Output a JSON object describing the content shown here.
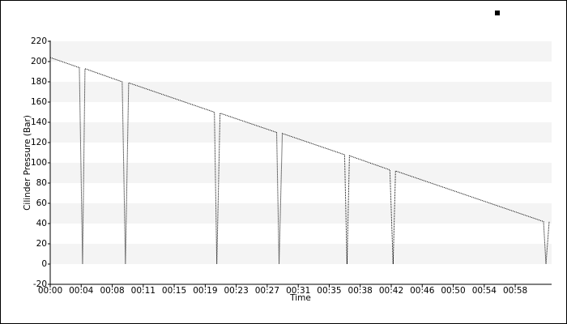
{
  "chart_data": {
    "type": "line",
    "ylabel": "Cilinder Pressure (Bar)",
    "xlabel": "Time",
    "xlim": [
      0,
      62
    ],
    "ylim": [
      -20,
      220
    ],
    "grid": "bands",
    "yticks": [
      -20,
      0,
      20,
      40,
      60,
      80,
      100,
      120,
      140,
      160,
      180,
      200,
      220
    ],
    "xticks": [
      {
        "value": 0,
        "label": "00:00"
      },
      {
        "value": 3.83,
        "label": "00:04"
      },
      {
        "value": 7.67,
        "label": "00:08"
      },
      {
        "value": 11.5,
        "label": "00:11"
      },
      {
        "value": 15.33,
        "label": "00:15"
      },
      {
        "value": 19.17,
        "label": "00:19"
      },
      {
        "value": 23,
        "label": "00:23"
      },
      {
        "value": 26.83,
        "label": "00:27"
      },
      {
        "value": 30.67,
        "label": "00:31"
      },
      {
        "value": 34.5,
        "label": "00:35"
      },
      {
        "value": 38.33,
        "label": "00:38"
      },
      {
        "value": 42.17,
        "label": "00:42"
      },
      {
        "value": 46,
        "label": "00:46"
      },
      {
        "value": 49.83,
        "label": "00:50"
      },
      {
        "value": 53.67,
        "label": "00:54"
      },
      {
        "value": 57.5,
        "label": "00:58"
      }
    ],
    "series": [
      {
        "color": "#000000",
        "x": [
          0,
          3.6,
          4.0,
          4.3,
          8.9,
          9.3,
          9.7,
          20.3,
          20.6,
          21.0,
          28.0,
          28.3,
          28.7,
          36.4,
          36.7,
          37.0,
          42.0,
          42.4,
          42.7,
          61.0,
          61.3,
          61.7
        ],
        "values": [
          204,
          194,
          0,
          193,
          180,
          0,
          179,
          150,
          0,
          149,
          130,
          0,
          129,
          108,
          0,
          107,
          93,
          0,
          92,
          42,
          0,
          42
        ]
      }
    ]
  }
}
